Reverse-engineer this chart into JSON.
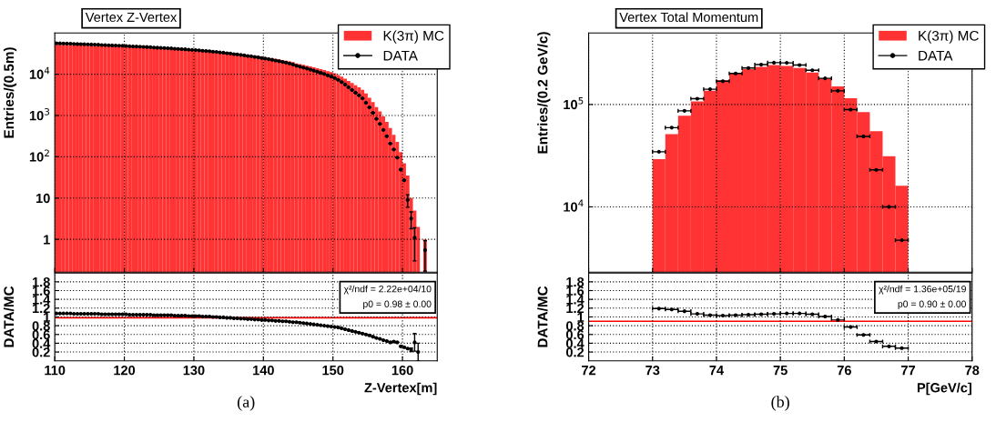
{
  "chart_data": [
    {
      "type": "histogram",
      "title": "Vertex Z-Vertex",
      "ylabel": "Entries/(0.5m)",
      "log": true,
      "grid": true,
      "legend": "top right",
      "tick_labels": "y",
      "marker": "circle",
      "xlim": [
        110,
        165
      ],
      "xticks": [
        110,
        120,
        130,
        140,
        150,
        160
      ],
      "ylim": [
        0.16,
        100000
      ],
      "yticks": [
        1,
        10,
        {
          "value": 100,
          "label": "10$^{2}$"
        },
        {
          "value": 1000,
          "label": "10$^{3}$"
        },
        {
          "value": 10000,
          "label": "10$^{4}$"
        }
      ],
      "bins": [
        110,
        110.5,
        111,
        111.5,
        112,
        112.5,
        113,
        113.5,
        114,
        114.5,
        115,
        115.5,
        116,
        116.5,
        117,
        117.5,
        118,
        118.5,
        119,
        119.5,
        120,
        120.5,
        121,
        121.5,
        122,
        122.5,
        123,
        123.5,
        124,
        124.5,
        125,
        125.5,
        126,
        126.5,
        127,
        127.5,
        128,
        128.5,
        129,
        129.5,
        130,
        130.5,
        131,
        131.5,
        132,
        132.5,
        133,
        133.5,
        134,
        134.5,
        135,
        135.5,
        136,
        136.5,
        137,
        137.5,
        138,
        138.5,
        139,
        139.5,
        140,
        140.5,
        141,
        141.5,
        142,
        142.5,
        143,
        143.5,
        144,
        144.5,
        145,
        145.5,
        146,
        146.5,
        147,
        147.5,
        148,
        148.5,
        149,
        149.5,
        150,
        150.5,
        151,
        151.5,
        152,
        152.5,
        153,
        153.5,
        154,
        154.5,
        155,
        155.5,
        156,
        156.5,
        157,
        157.5,
        158,
        158.5,
        159,
        159.5,
        160,
        160.5,
        161,
        161.5,
        162,
        162.5,
        163,
        163.5
      ],
      "series": [
        {
          "name": "K(3π) MC",
          "color": "#ff3333",
          "values": [
            52000,
            51700,
            51400,
            51100,
            50800,
            50500,
            50200,
            49900,
            49600,
            49300,
            49000,
            48700,
            48400,
            48100,
            47700,
            47400,
            47000,
            46700,
            46300,
            46000,
            45600,
            45200,
            44900,
            44500,
            44100,
            43800,
            43400,
            43000,
            42600,
            42200,
            41800,
            41400,
            41000,
            40600,
            40200,
            39800,
            39400,
            38900,
            38500,
            38000,
            37600,
            37100,
            36600,
            36100,
            35600,
            35100,
            34600,
            34000,
            33500,
            32900,
            32300,
            31700,
            31100,
            30500,
            29900,
            29200,
            28600,
            27900,
            27200,
            26500,
            25800,
            25100,
            24300,
            23600,
            22800,
            22000,
            21200,
            20400,
            19600,
            18200,
            17500,
            16800,
            16100,
            15400,
            14700,
            14000,
            13300,
            12600,
            11900,
            11200,
            10500,
            9600,
            8700,
            7800,
            6900,
            6100,
            5400,
            4800,
            4200,
            3400,
            2700,
            2100,
            1600,
            1250,
            950,
            700,
            500,
            340,
            230,
            130,
            70,
            35,
            10,
            5,
            2,
            null,
            1
          ]
        },
        {
          "name": "DATA",
          "type": "scatter",
          "color": "#000000",
          "x": [
            110.25,
            110.75,
            111.25,
            111.75,
            112.25,
            112.75,
            113.25,
            113.75,
            114.25,
            114.75,
            115.25,
            115.75,
            116.25,
            116.75,
            117.25,
            117.75,
            118.25,
            118.75,
            119.25,
            119.75,
            120.25,
            120.75,
            121.25,
            121.75,
            122.25,
            122.75,
            123.25,
            123.75,
            124.25,
            124.75,
            125.25,
            125.75,
            126.25,
            126.75,
            127.25,
            127.75,
            128.25,
            128.75,
            129.25,
            129.75,
            130.25,
            130.75,
            131.25,
            131.75,
            132.25,
            132.75,
            133.25,
            133.75,
            134.25,
            134.75,
            135.25,
            135.75,
            136.25,
            136.75,
            137.25,
            137.75,
            138.25,
            138.75,
            139.25,
            139.75,
            140.25,
            140.75,
            141.25,
            141.75,
            142.25,
            142.75,
            143.25,
            143.75,
            144.25,
            144.75,
            145.25,
            145.75,
            146.25,
            146.75,
            147.25,
            147.75,
            148.25,
            148.75,
            149.25,
            149.75,
            150.25,
            150.75,
            151.25,
            151.75,
            152.25,
            152.75,
            153.25,
            153.75,
            154.25,
            154.75,
            155.25,
            155.75,
            156.25,
            156.75,
            157.25,
            157.75,
            158.25,
            158.75,
            159.25,
            159.75,
            160.25,
            160.75,
            161.25,
            161.75,
            162.25,
            162.75,
            163.25
          ],
          "values": [
            56200,
            55800,
            55500,
            55200,
            54900,
            54000,
            53700,
            53400,
            53100,
            52800,
            52400,
            52100,
            51800,
            51000,
            50600,
            50200,
            49800,
            49500,
            49100,
            48800,
            48300,
            47500,
            47100,
            46700,
            46300,
            46000,
            45600,
            45200,
            44300,
            43900,
            43500,
            43100,
            42600,
            42200,
            41400,
            41000,
            40600,
            40100,
            39300,
            38800,
            38400,
            37800,
            37000,
            36500,
            36000,
            35100,
            34600,
            33700,
            33200,
            32200,
            31700,
            30700,
            30200,
            29300,
            28700,
            27700,
            27200,
            26200,
            25600,
            24600,
            24000,
            23100,
            22400,
            21500,
            20700,
            19800,
            19100,
            18200,
            17200,
            16000,
            15200,
            14400,
            13700,
            12900,
            12200,
            11500,
            10800,
            10100,
            9400,
            8740,
            8090,
            7300,
            6440,
            5620,
            4830,
            4150,
            3560,
            3070,
            2600,
            2040,
            1570,
            1160,
            832,
            625,
            447,
            315,
            210,
            150,
            95,
            49,
            27,
            9,
            3.2,
            1.1,
            null,
            null,
            0.55
          ],
          "errors": [
            null,
            null,
            null,
            null,
            null,
            null,
            null,
            null,
            null,
            null,
            null,
            null,
            null,
            null,
            null,
            null,
            null,
            null,
            null,
            null,
            null,
            null,
            null,
            null,
            null,
            null,
            null,
            null,
            null,
            null,
            null,
            null,
            null,
            null,
            null,
            null,
            null,
            null,
            null,
            null,
            null,
            null,
            null,
            null,
            null,
            null,
            null,
            null,
            null,
            null,
            null,
            null,
            null,
            null,
            null,
            null,
            null,
            null,
            null,
            null,
            null,
            null,
            null,
            null,
            null,
            null,
            null,
            null,
            null,
            null,
            null,
            null,
            null,
            null,
            null,
            null,
            null,
            null,
            null,
            null,
            null,
            null,
            null,
            null,
            null,
            null,
            null,
            null,
            null,
            null,
            null,
            null,
            null,
            null,
            null,
            null,
            null,
            null,
            null,
            null,
            null,
            3,
            1.4,
            0.8,
            null,
            null,
            0.38
          ]
        }
      ]
    },
    {
      "type": "scatter",
      "xlabel": "Z-Vertex[m]",
      "ylabel": "DATA/MC",
      "grid": true,
      "marker": "circle",
      "xlim": [
        110,
        165
      ],
      "xticks": [
        110,
        120,
        130,
        140,
        150,
        160
      ],
      "ylim": [
        0,
        2
      ],
      "yticks": [
        0.2,
        0.4,
        0.6,
        0.8,
        1,
        1.2,
        1.4,
        1.6,
        1.8
      ],
      "ref_lines": [
        {
          "axis": "y",
          "value": 0.98,
          "color": "#ff0000"
        }
      ],
      "annotations": [
        "χ²/ndf = 2.22e+04/10",
        "p0 = 0.98 ± 0.00",
        "(a)"
      ],
      "series": [
        {
          "color": "#000000",
          "x": [
            110.25,
            110.75,
            111.25,
            111.75,
            112.25,
            112.75,
            113.25,
            113.75,
            114.25,
            114.75,
            115.25,
            115.75,
            116.25,
            116.75,
            117.25,
            117.75,
            118.25,
            118.75,
            119.25,
            119.75,
            120.25,
            120.75,
            121.25,
            121.75,
            122.25,
            122.75,
            123.25,
            123.75,
            124.25,
            124.75,
            125.25,
            125.75,
            126.25,
            126.75,
            127.25,
            127.75,
            128.25,
            128.75,
            129.25,
            129.75,
            130.25,
            130.75,
            131.25,
            131.75,
            132.25,
            132.75,
            133.25,
            133.75,
            134.25,
            134.75,
            135.25,
            135.75,
            136.25,
            136.75,
            137.25,
            137.75,
            138.25,
            138.75,
            139.25,
            139.75,
            140.25,
            140.75,
            141.25,
            141.75,
            142.25,
            142.75,
            143.25,
            143.75,
            144.25,
            144.75,
            145.25,
            145.75,
            146.25,
            146.75,
            147.25,
            147.75,
            148.25,
            148.75,
            149.25,
            149.75,
            150.25,
            150.75,
            151.25,
            151.75,
            152.25,
            152.75,
            153.25,
            153.75,
            154.25,
            154.75,
            155.25,
            155.75,
            156.25,
            156.75,
            157.25,
            157.75,
            158.25,
            158.75,
            159.25,
            159.75,
            160.25,
            160.75,
            161.25,
            161.75,
            162.25
          ],
          "values": [
            1.08,
            1.08,
            1.08,
            1.08,
            1.08,
            1.07,
            1.07,
            1.07,
            1.07,
            1.07,
            1.07,
            1.07,
            1.07,
            1.06,
            1.06,
            1.06,
            1.06,
            1.06,
            1.06,
            1.06,
            1.06,
            1.05,
            1.05,
            1.05,
            1.05,
            1.05,
            1.05,
            1.05,
            1.04,
            1.04,
            1.04,
            1.04,
            1.04,
            1.04,
            1.03,
            1.03,
            1.03,
            1.03,
            1.02,
            1.02,
            1.02,
            1.02,
            1.01,
            1.01,
            1.01,
            1.0,
            1.0,
            0.99,
            0.99,
            0.98,
            0.98,
            0.97,
            0.97,
            0.96,
            0.96,
            0.95,
            0.95,
            0.94,
            0.94,
            0.93,
            0.93,
            0.92,
            0.92,
            0.91,
            0.91,
            0.9,
            0.9,
            0.89,
            0.88,
            0.88,
            0.87,
            0.86,
            0.85,
            0.84,
            0.83,
            0.82,
            0.81,
            0.8,
            0.79,
            0.78,
            0.77,
            0.76,
            0.74,
            0.72,
            0.7,
            0.68,
            0.66,
            0.64,
            0.62,
            0.6,
            0.58,
            0.55,
            0.52,
            0.5,
            0.47,
            0.45,
            0.42,
            0.44,
            0.42,
            0.33,
            0.31,
            0.28,
            0.25,
            0.42,
            0.2
          ],
          "errors": [
            null,
            null,
            null,
            null,
            null,
            null,
            null,
            null,
            null,
            null,
            null,
            null,
            null,
            null,
            null,
            null,
            null,
            null,
            null,
            null,
            null,
            null,
            null,
            null,
            null,
            null,
            null,
            null,
            null,
            null,
            null,
            null,
            null,
            null,
            null,
            null,
            null,
            null,
            null,
            null,
            null,
            null,
            null,
            null,
            null,
            null,
            null,
            null,
            null,
            null,
            null,
            null,
            null,
            null,
            null,
            null,
            null,
            null,
            null,
            null,
            null,
            null,
            null,
            null,
            null,
            null,
            null,
            null,
            null,
            null,
            null,
            null,
            null,
            null,
            null,
            null,
            null,
            null,
            null,
            null,
            null,
            null,
            null,
            null,
            null,
            null,
            null,
            null,
            null,
            null,
            null,
            null,
            null,
            null,
            null,
            null,
            null,
            null,
            null,
            null,
            null,
            null,
            0.04,
            0.2,
            0.2
          ]
        }
      ]
    },
    {
      "type": "histogram",
      "title": "Vertex Total Momentum",
      "ylabel": "Entries/(0.2 GeV/c)",
      "log": true,
      "grid": true,
      "legend": "top right",
      "tick_labels": "y",
      "marker": "circle",
      "xlim": [
        72,
        78
      ],
      "xticks": [
        72,
        73,
        74,
        75,
        76,
        77,
        78
      ],
      "ylim": [
        2300,
        500000
      ],
      "yticks": [
        {
          "value": 10000,
          "label": "10$^{4}$"
        },
        {
          "value": 100000,
          "label": "10$^{5}$"
        }
      ],
      "bins": [
        73,
        73.2,
        73.4,
        73.6,
        73.8,
        74,
        74.2,
        74.4,
        74.6,
        74.8,
        75,
        75.2,
        75.4,
        75.6,
        75.8,
        76,
        76.2,
        76.4,
        76.6,
        76.8,
        77
      ],
      "series": [
        {
          "name": "K(3π) MC",
          "color": "#ff3333",
          "values": [
            29200,
            51200,
            77800,
            107000,
            136000,
            172000,
            201000,
            221000,
            233000,
            243000,
            238000,
            227000,
            205000,
            180000,
            150000,
            115000,
            84400,
            54700,
            31200,
            16100
          ]
        },
        {
          "name": "DATA",
          "type": "scatter",
          "color": "#000000",
          "x": [
            73.1,
            73.3,
            73.5,
            73.7,
            73.9,
            74.1,
            74.3,
            74.5,
            74.7,
            74.9,
            75.1,
            75.3,
            75.5,
            75.7,
            75.9,
            76.1,
            76.3,
            76.5,
            76.7,
            76.9
          ],
          "values": [
            34500,
            59400,
            86700,
            114000,
            141000,
            169000,
            201000,
            227000,
            245000,
            256000,
            255000,
            243000,
            216000,
            180000,
            136000,
            89100,
            48800,
            23000,
            10000,
            4720
          ],
          "xerrors": [
            0.1,
            0.1,
            0.1,
            0.1,
            0.1,
            0.1,
            0.1,
            0.1,
            0.1,
            0.1,
            0.1,
            0.1,
            0.1,
            0.1,
            0.1,
            0.1,
            0.1,
            0.1,
            0.1,
            0.1
          ]
        }
      ]
    },
    {
      "type": "scatter",
      "xlabel": "P[GeV/c]",
      "ylabel": "DATA/MC",
      "grid": true,
      "marker": "circle",
      "xlim": [
        72,
        78
      ],
      "xticks": [
        72,
        73,
        74,
        75,
        76,
        77,
        78
      ],
      "ylim": [
        0,
        2
      ],
      "yticks": [
        0.2,
        0.4,
        0.6,
        0.8,
        1,
        1.2,
        1.4,
        1.6,
        1.8
      ],
      "ref_lines": [
        {
          "axis": "y",
          "value": 0.9,
          "color": "#ff0000"
        }
      ],
      "annotations": [
        "χ²/ndf = 1.36e+05/19",
        "p0 = 0.90 ± 0.00",
        "(b)"
      ],
      "series": [
        {
          "color": "#000000",
          "x": [
            73.1,
            73.3,
            73.5,
            73.7,
            73.9,
            74.1,
            74.3,
            74.5,
            74.7,
            74.9,
            75.1,
            75.3,
            75.5,
            75.7,
            75.9,
            76.1,
            76.3,
            76.5,
            76.7,
            76.9
          ],
          "values": [
            1.19,
            1.17,
            1.13,
            1.07,
            1.04,
            1.03,
            1.04,
            1.05,
            1.06,
            1.07,
            1.08,
            1.08,
            1.06,
            1.01,
            0.93,
            0.77,
            0.59,
            0.44,
            0.33,
            0.29
          ],
          "xerrors": [
            0.1,
            0.1,
            0.1,
            0.1,
            0.1,
            0.1,
            0.1,
            0.1,
            0.1,
            0.1,
            0.1,
            0.1,
            0.1,
            0.1,
            0.1,
            0.1,
            0.1,
            0.1,
            0.1,
            0.1
          ]
        }
      ]
    }
  ]
}
